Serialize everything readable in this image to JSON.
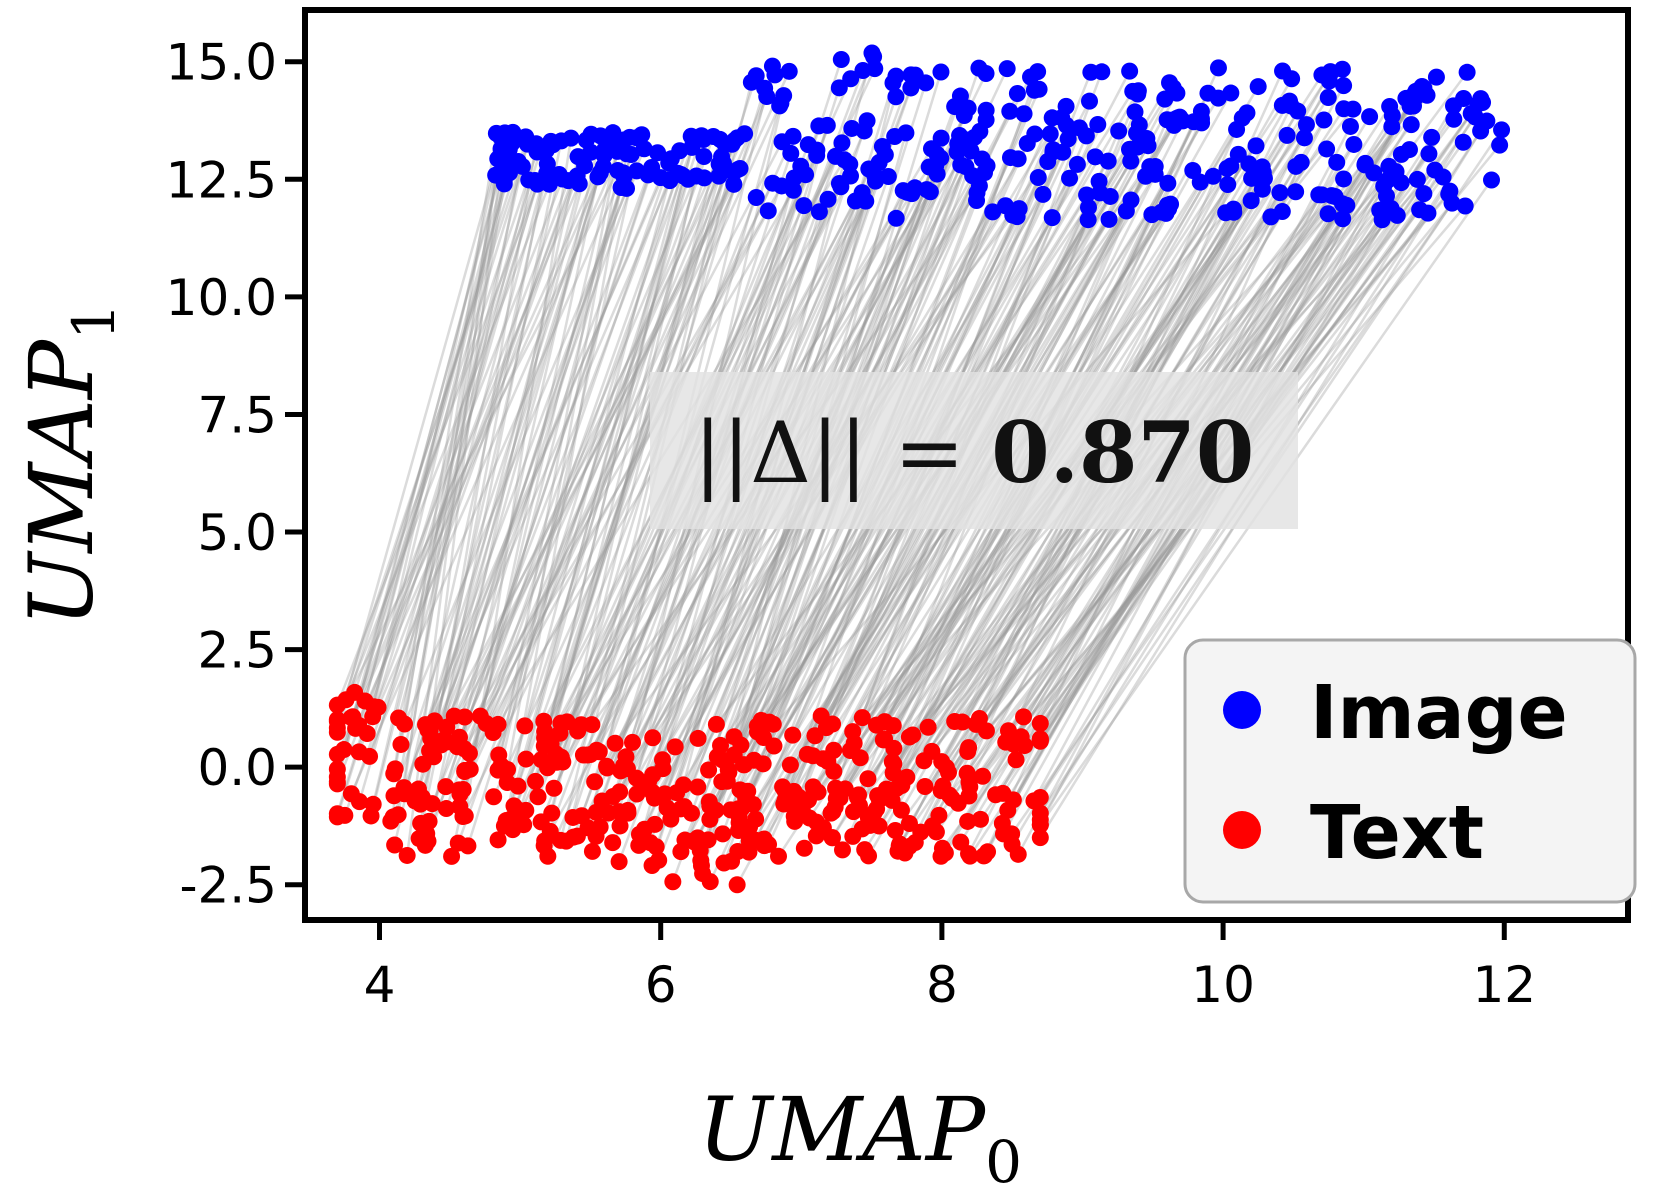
{
  "chart_data": {
    "type": "scatter",
    "xlabel": "UMAP",
    "xlabel_subscript": "0",
    "ylabel": "UMAP",
    "ylabel_subscript": "1",
    "xlim": [
      3.47,
      12.88
    ],
    "ylim": [
      -3.25,
      16.1
    ],
    "x_ticks": [
      4,
      6,
      8,
      10,
      12
    ],
    "x_tick_labels": [
      "4",
      "6",
      "8",
      "10",
      "12"
    ],
    "y_ticks": [
      -2.5,
      0.0,
      2.5,
      5.0,
      7.5,
      10.0,
      12.5,
      15.0
    ],
    "y_tick_labels": [
      "-2.5",
      "0.0",
      "2.5",
      "5.0",
      "7.5",
      "10.0",
      "12.5",
      "15.0"
    ],
    "grid": false,
    "legend_placement": "lower-right",
    "series": [
      {
        "name": "Image",
        "color": "#0000ff",
        "cluster_extent": {
          "x": [
            4.8,
            12.0
          ],
          "y": [
            11.2,
            15.3
          ]
        }
      },
      {
        "name": "Text",
        "color": "#ff0000",
        "cluster_extent": {
          "x": [
            3.7,
            8.7
          ],
          "y": [
            -2.7,
            1.8
          ]
        }
      }
    ],
    "pair_lines_color": "#999999",
    "annotation": {
      "prefix": "||Δ|| = ",
      "value": "0.870"
    }
  }
}
